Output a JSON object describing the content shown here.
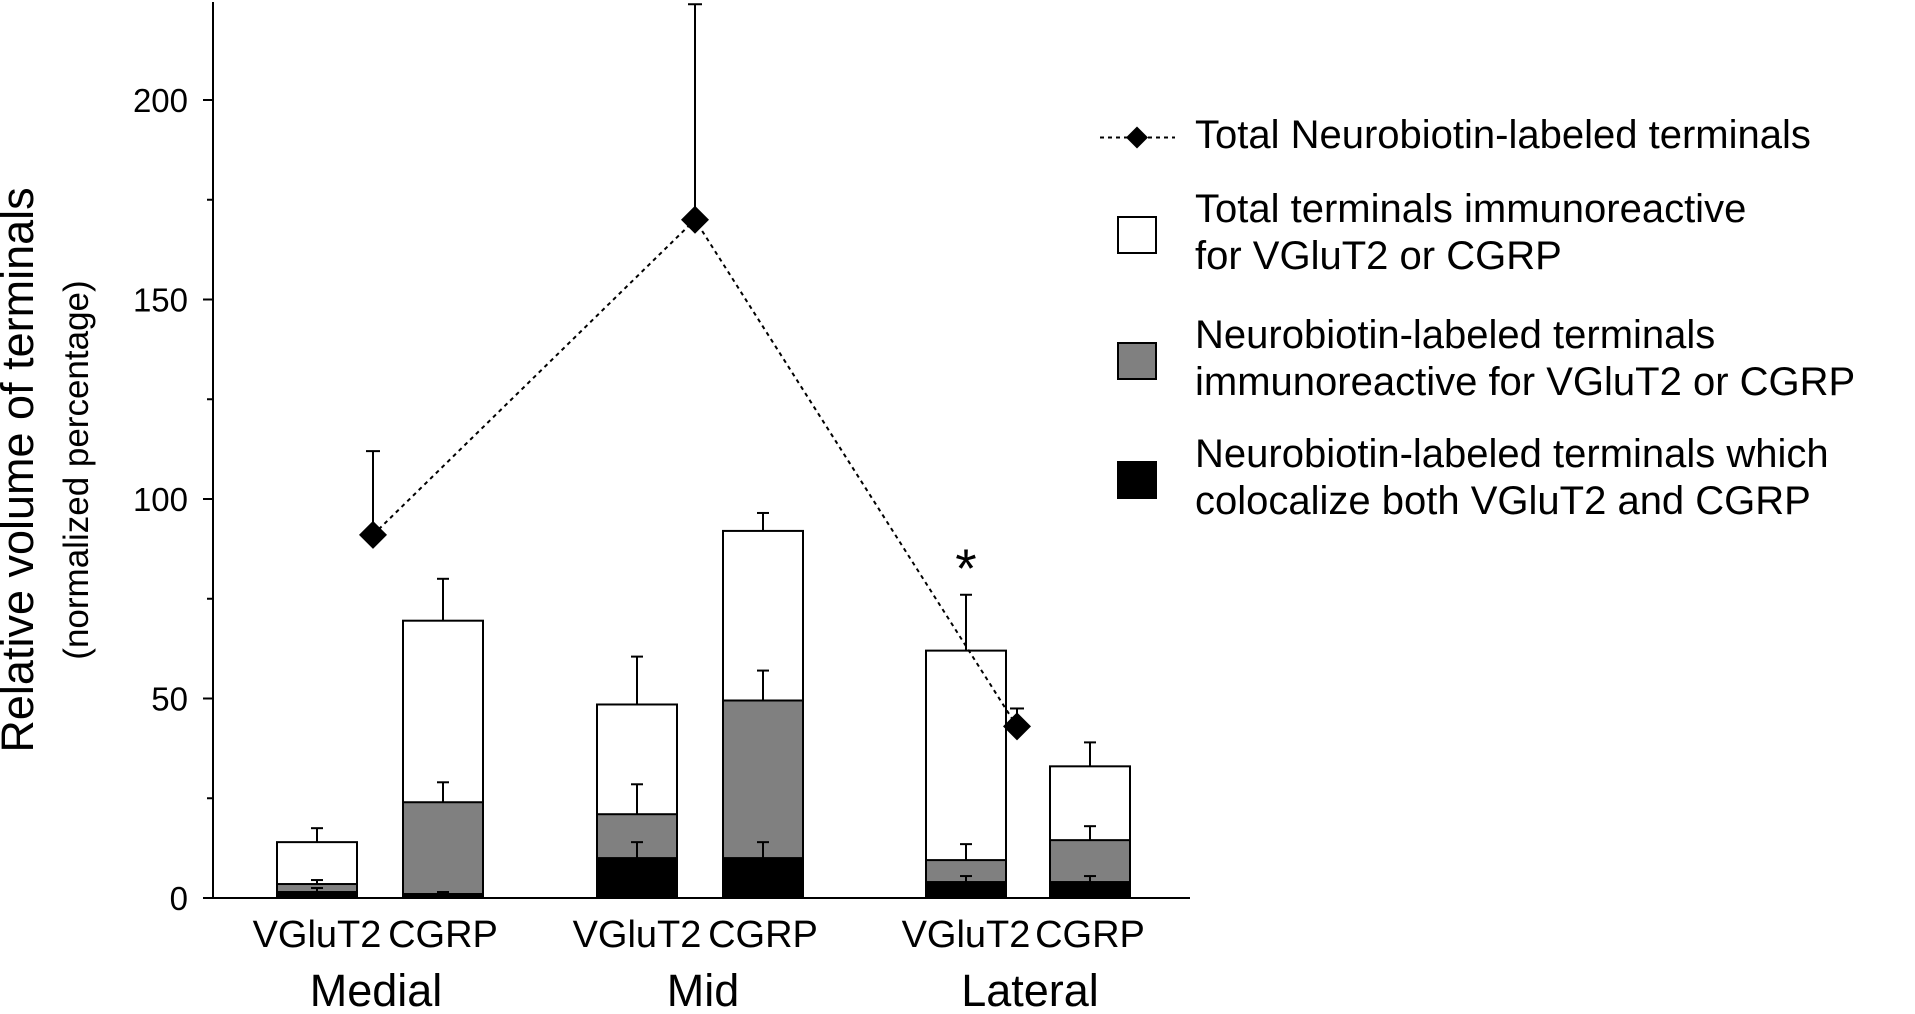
{
  "chart_data": {
    "type": "bar",
    "subtype": "stacked-bar-with-line",
    "title": "",
    "ylabel": "Relative volume of terminals",
    "ylabel_sub": "(normalized percentage)",
    "xlabel": "",
    "ylim": [
      0,
      225
    ],
    "yticks": [
      0,
      50,
      100,
      150,
      200
    ],
    "groups": [
      "Medial",
      "Mid",
      "Lateral"
    ],
    "bar_labels": [
      "VGluT2",
      "CGRP",
      "VGluT2",
      "CGRP",
      "VGluT2",
      "CGRP"
    ],
    "series": [
      {
        "name": "Neurobiotin-labeled terminals which colocalize both VGluT2 and CGRP",
        "color": "#000000",
        "values": [
          1.5,
          1,
          10,
          10,
          4,
          4
        ],
        "errors": [
          1,
          0.5,
          4,
          4,
          1.5,
          1.5
        ]
      },
      {
        "name": "Neurobiotin-labeled terminals immunoreactive for VGluT2 or CGRP",
        "color": "#808080",
        "values": [
          3.5,
          24,
          21,
          49.5,
          9.5,
          14.5
        ],
        "errors": [
          1,
          5,
          7.5,
          7.5,
          4,
          3.5
        ]
      },
      {
        "name": "Total terminals immunoreactive for VGluT2 or CGRP",
        "color": "#ffffff",
        "values": [
          14,
          69.5,
          48.5,
          92,
          62,
          33
        ],
        "errors": [
          3.5,
          10.5,
          12,
          4.5,
          14,
          6
        ]
      }
    ],
    "line_series": {
      "name": "Total Neurobiotin-labeled terminals",
      "marker": "diamond",
      "line_style": "dotted",
      "color": "#000000",
      "values": [
        91,
        170,
        43
      ],
      "errors": [
        21,
        54,
        4.5
      ]
    },
    "annotations": [
      {
        "text": "*",
        "group": "Lateral",
        "bar": "VGluT2"
      }
    ],
    "legend": {
      "placement": "right",
      "entries": [
        {
          "kind": "line",
          "lines": [
            "Total Neurobiotin-labeled terminals"
          ]
        },
        {
          "kind": "box",
          "color": "#ffffff",
          "lines": [
            "Total terminals immunoreactive",
            "for VGluT2 or CGRP"
          ]
        },
        {
          "kind": "box",
          "color": "#808080",
          "lines": [
            "Neurobiotin-labeled terminals",
            "immunoreactive for VGluT2 or CGRP"
          ]
        },
        {
          "kind": "box",
          "color": "#000000",
          "lines": [
            "Neurobiotin-labeled terminals which",
            "colocalize both VGluT2 and CGRP"
          ]
        }
      ]
    },
    "grid": false
  }
}
